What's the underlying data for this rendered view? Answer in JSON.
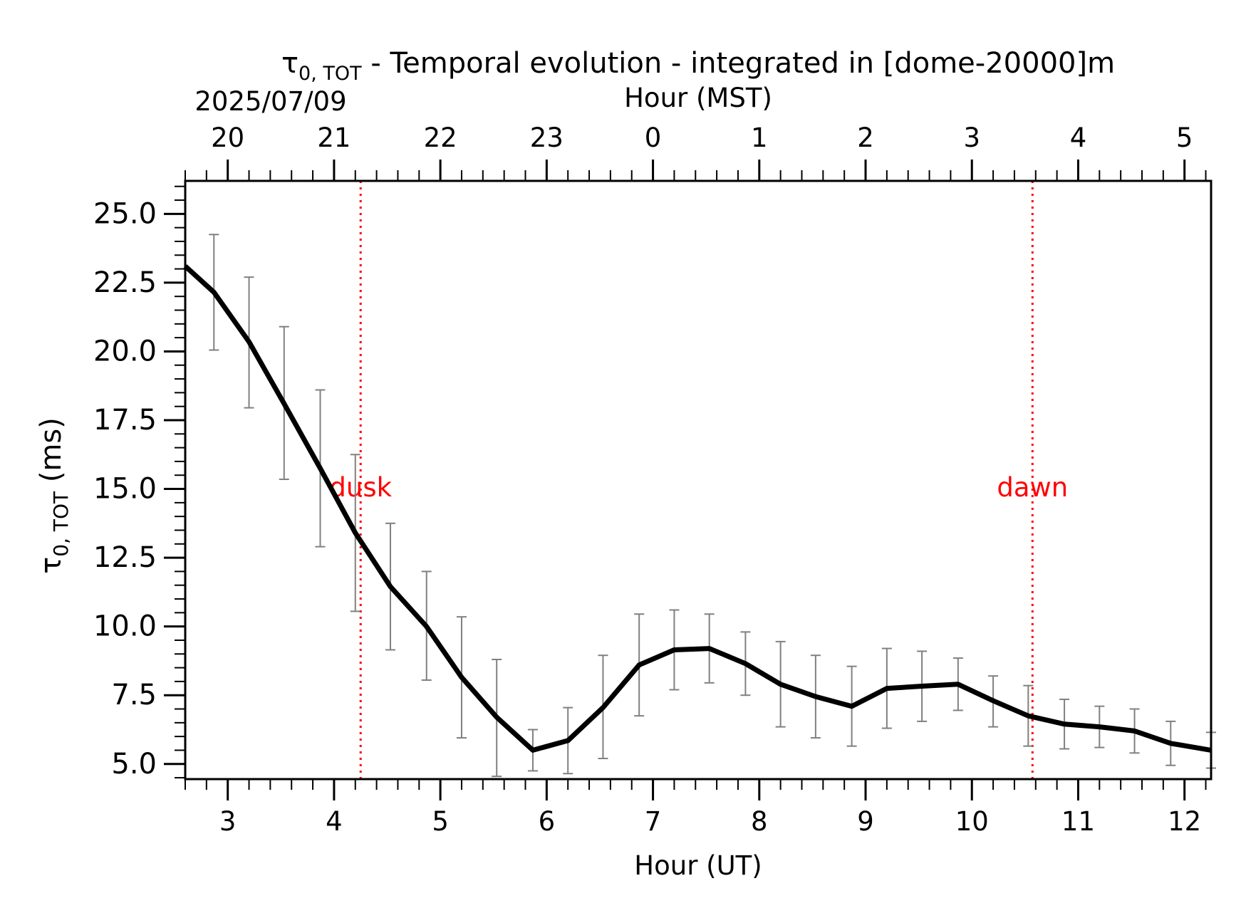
{
  "chart_data": {
    "type": "line",
    "title": {
      "symbol": "τ",
      "subscript": "0, TOT",
      "text": " - Temporal evolution - integrated in [dome-20000]m"
    },
    "date_label": "2025/07/09",
    "xlabel": "Hour (UT)",
    "x2label": "Hour (MST)",
    "ylabel": {
      "symbol": "τ",
      "subscript": "0, TOT",
      "unit": " (ms)"
    },
    "xlim": [
      2.6,
      12.25
    ],
    "ylim": [
      4.45,
      26.2
    ],
    "x_ticks": [
      3,
      4,
      5,
      6,
      7,
      8,
      9,
      10,
      11,
      12
    ],
    "x2_ticks": [
      {
        "ut": 3,
        "label": "20"
      },
      {
        "ut": 4,
        "label": "21"
      },
      {
        "ut": 5,
        "label": "22"
      },
      {
        "ut": 6,
        "label": "23"
      },
      {
        "ut": 7,
        "label": "0"
      },
      {
        "ut": 8,
        "label": "1"
      },
      {
        "ut": 9,
        "label": "2"
      },
      {
        "ut": 10,
        "label": "3"
      },
      {
        "ut": 11,
        "label": "4"
      },
      {
        "ut": 12,
        "label": "5"
      }
    ],
    "y_ticks": [
      "5.0",
      "7.5",
      "10.0",
      "12.5",
      "15.0",
      "17.5",
      "20.0",
      "22.5",
      "25.0"
    ],
    "events": [
      {
        "label": "dusk",
        "x": 4.25,
        "color": "#ff0000"
      },
      {
        "label": "dawn",
        "x": 10.57,
        "color": "#ff0000"
      }
    ],
    "series": [
      {
        "color": "#000000",
        "points": [
          {
            "x": 2.6,
            "y": 23.1,
            "lo": null,
            "hi": null
          },
          {
            "x": 2.87,
            "y": 22.15,
            "lo": 20.05,
            "hi": 24.25
          },
          {
            "x": 3.2,
            "y": 20.35,
            "lo": 17.95,
            "hi": 22.7
          },
          {
            "x": 3.53,
            "y": 18.1,
            "lo": 15.35,
            "hi": 20.9
          },
          {
            "x": 3.87,
            "y": 15.75,
            "lo": 12.9,
            "hi": 18.6
          },
          {
            "x": 4.2,
            "y": 13.4,
            "lo": 10.55,
            "hi": 16.25
          },
          {
            "x": 4.53,
            "y": 11.45,
            "lo": 9.15,
            "hi": 13.75
          },
          {
            "x": 4.87,
            "y": 10.0,
            "lo": 8.05,
            "hi": 12.0
          },
          {
            "x": 5.2,
            "y": 8.15,
            "lo": 5.95,
            "hi": 10.35
          },
          {
            "x": 5.53,
            "y": 6.7,
            "lo": 4.55,
            "hi": 8.8
          },
          {
            "x": 5.87,
            "y": 5.5,
            "lo": 4.75,
            "hi": 6.25
          },
          {
            "x": 6.2,
            "y": 5.85,
            "lo": 4.65,
            "hi": 7.05
          },
          {
            "x": 6.53,
            "y": 7.05,
            "lo": 5.2,
            "hi": 8.95
          },
          {
            "x": 6.87,
            "y": 8.6,
            "lo": 6.75,
            "hi": 10.45
          },
          {
            "x": 7.2,
            "y": 9.15,
            "lo": 7.7,
            "hi": 10.6
          },
          {
            "x": 7.53,
            "y": 9.2,
            "lo": 7.95,
            "hi": 10.45
          },
          {
            "x": 7.87,
            "y": 8.65,
            "lo": 7.5,
            "hi": 9.8
          },
          {
            "x": 8.2,
            "y": 7.9,
            "lo": 6.35,
            "hi": 9.45
          },
          {
            "x": 8.53,
            "y": 7.45,
            "lo": 5.95,
            "hi": 8.95
          },
          {
            "x": 8.87,
            "y": 7.1,
            "lo": 5.65,
            "hi": 8.55
          },
          {
            "x": 9.2,
            "y": 7.75,
            "lo": 6.3,
            "hi": 9.2
          },
          {
            "x": 9.53,
            "y": 7.83,
            "lo": 6.55,
            "hi": 9.1
          },
          {
            "x": 9.87,
            "y": 7.9,
            "lo": 6.95,
            "hi": 8.85
          },
          {
            "x": 10.2,
            "y": 7.3,
            "lo": 6.35,
            "hi": 8.2
          },
          {
            "x": 10.53,
            "y": 6.75,
            "lo": 5.65,
            "hi": 7.85
          },
          {
            "x": 10.87,
            "y": 6.45,
            "lo": 5.55,
            "hi": 7.35
          },
          {
            "x": 11.2,
            "y": 6.35,
            "lo": 5.6,
            "hi": 7.1
          },
          {
            "x": 11.53,
            "y": 6.2,
            "lo": 5.4,
            "hi": 7.0
          },
          {
            "x": 11.87,
            "y": 5.75,
            "lo": 4.95,
            "hi": 6.55
          },
          {
            "x": 12.25,
            "y": 5.5,
            "lo": 4.85,
            "hi": 6.15
          }
        ]
      }
    ],
    "error_bar_color": "#808080",
    "grid": false
  }
}
